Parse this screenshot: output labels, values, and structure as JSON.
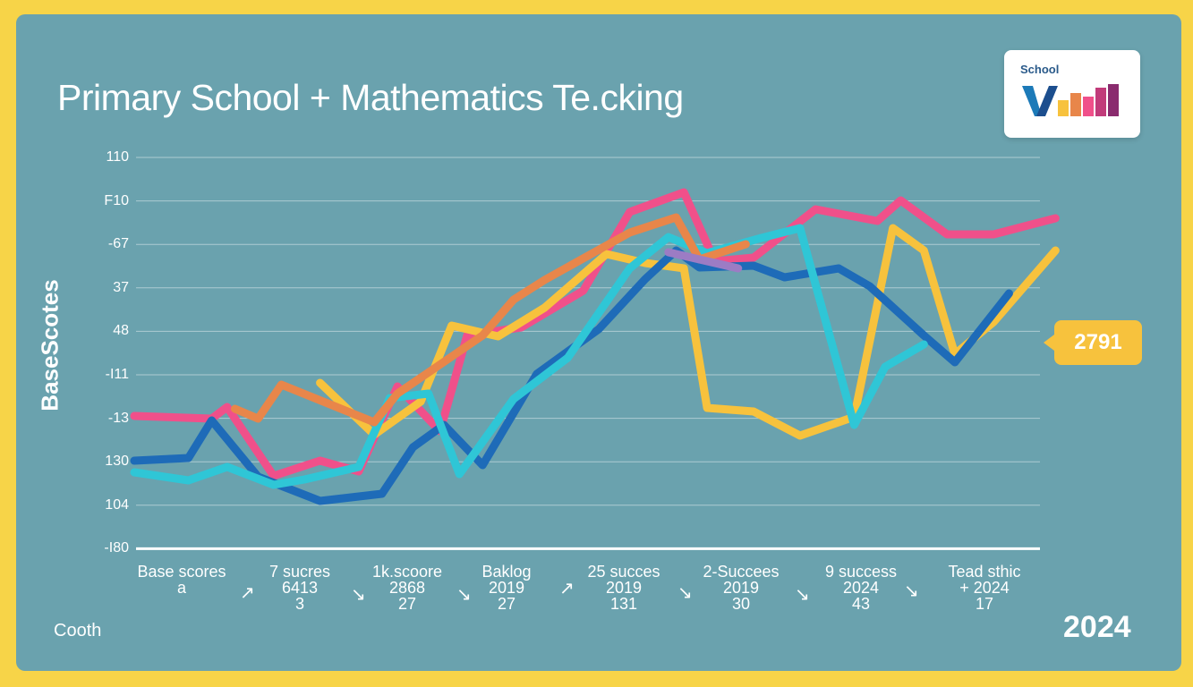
{
  "title": "Primary School + Mathematics Te.cking",
  "logo": {
    "text": "School",
    "icon": "bar-logo-icon"
  },
  "footer": {
    "left": "Cooth",
    "right": "2024"
  },
  "callout": {
    "value": "2791"
  },
  "chart_data": {
    "type": "line",
    "ylabel": "BaseScotes",
    "yticks": [
      "110",
      "F10",
      "-67",
      "37",
      "48",
      "-I11",
      "-13",
      "130",
      "104",
      "-I80"
    ],
    "grid": true,
    "categories": [
      [
        "Base scores",
        "a",
        ""
      ],
      [
        "7 sucres",
        "6413",
        "3"
      ],
      [
        "1k.scoore",
        "2868",
        "27"
      ],
      [
        "Baklog",
        "2019",
        "27"
      ],
      [
        "25 succes",
        "2019",
        "131"
      ],
      [
        "2-Succees",
        "2019",
        "30"
      ],
      [
        "9 success",
        "2024",
        "43"
      ],
      [
        "Tead sthic",
        "+ 2024",
        "17"
      ]
    ],
    "series": [
      {
        "color": "#F0508A",
        "points": [
          [
            0,
            465
          ],
          [
            1,
            468
          ],
          [
            1.2,
            455
          ],
          [
            1.8,
            532
          ],
          [
            2.4,
            515
          ],
          [
            2.9,
            527
          ],
          [
            3.4,
            432
          ],
          [
            3.95,
            482
          ],
          [
            4.3,
            375
          ],
          [
            5,
            366
          ],
          [
            5.8,
            325
          ],
          [
            6.4,
            237
          ],
          [
            7.1,
            215
          ],
          [
            7.5,
            292
          ],
          [
            8,
            288
          ],
          [
            8.8,
            234
          ],
          [
            9.6,
            247
          ],
          [
            9.9,
            224
          ],
          [
            10.5,
            262
          ],
          [
            11.1,
            262
          ],
          [
            11.9,
            244
          ]
        ]
      },
      {
        "color": "#F7C23D",
        "points": [
          [
            2.4,
            428
          ],
          [
            3.1,
            486
          ],
          [
            3.7,
            449
          ],
          [
            4.1,
            364
          ],
          [
            4.7,
            376
          ],
          [
            5.3,
            344
          ],
          [
            6.1,
            284
          ],
          [
            6.6,
            294
          ],
          [
            7.1,
            300
          ],
          [
            7.4,
            456
          ],
          [
            8,
            460
          ],
          [
            8.6,
            487
          ],
          [
            9.3,
            466
          ],
          [
            9.8,
            255
          ],
          [
            10.2,
            280
          ],
          [
            10.6,
            396
          ],
          [
            11.1,
            360
          ],
          [
            11.9,
            280
          ]
        ]
      },
      {
        "color": "#1E6BB8",
        "points": [
          [
            0,
            515
          ],
          [
            0.7,
            512
          ],
          [
            1,
            470
          ],
          [
            1.6,
            533
          ],
          [
            2.4,
            560
          ],
          [
            3.2,
            552
          ],
          [
            3.6,
            500
          ],
          [
            4,
            475
          ],
          [
            4.5,
            520
          ],
          [
            5.2,
            418
          ],
          [
            6,
            368
          ],
          [
            6.6,
            312
          ],
          [
            7,
            280
          ],
          [
            7.3,
            299
          ],
          [
            8,
            297
          ],
          [
            8.4,
            310
          ],
          [
            9.1,
            300
          ],
          [
            9.5,
            320
          ],
          [
            10.2,
            375
          ],
          [
            10.6,
            405
          ],
          [
            11.3,
            328
          ]
        ]
      },
      {
        "color": "#2FC6D6",
        "points": [
          [
            0,
            528
          ],
          [
            0.7,
            537
          ],
          [
            1.2,
            522
          ],
          [
            1.8,
            542
          ],
          [
            2.2,
            536
          ],
          [
            2.9,
            522
          ],
          [
            3.3,
            445
          ],
          [
            3.8,
            440
          ],
          [
            4.2,
            530
          ],
          [
            4.9,
            446
          ],
          [
            5.6,
            400
          ],
          [
            6.4,
            300
          ],
          [
            6.9,
            265
          ],
          [
            7.4,
            283
          ],
          [
            8.1,
            266
          ],
          [
            8.6,
            255
          ],
          [
            9.3,
            475
          ],
          [
            9.7,
            410
          ],
          [
            10.2,
            385
          ]
        ]
      },
      {
        "color": "#E8864A",
        "points": [
          [
            1.3,
            457
          ],
          [
            1.6,
            468
          ],
          [
            1.9,
            430
          ],
          [
            3.1,
            472
          ],
          [
            3.4,
            440
          ],
          [
            4.5,
            375
          ],
          [
            4.9,
            335
          ],
          [
            5.3,
            313
          ],
          [
            6.4,
            260
          ],
          [
            7.0,
            243
          ],
          [
            7.3,
            290
          ],
          [
            7.9,
            273
          ]
        ]
      },
      {
        "color": "#9C7CC4",
        "points": [
          [
            6.9,
            282
          ],
          [
            7.4,
            292
          ],
          [
            7.8,
            300
          ]
        ]
      }
    ]
  }
}
